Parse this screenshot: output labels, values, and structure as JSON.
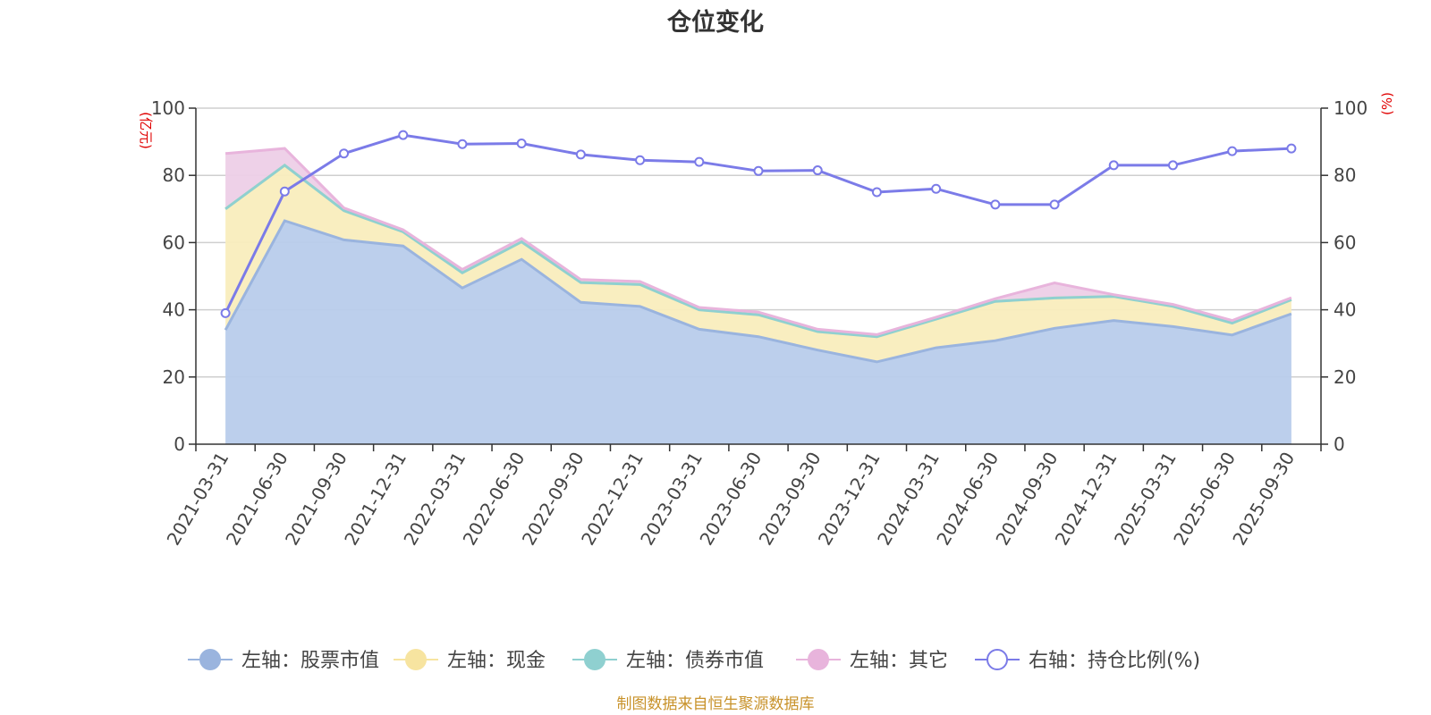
{
  "chart_data": {
    "type": "area",
    "title": "仓位变化",
    "categories": [
      "2021-03-31",
      "2021-06-30",
      "2021-09-30",
      "2021-12-31",
      "2022-03-31",
      "2022-06-30",
      "2022-09-30",
      "2022-12-31",
      "2023-03-31",
      "2023-06-30",
      "2023-09-30",
      "2023-12-31",
      "2024-03-31",
      "2024-06-30",
      "2024-09-30",
      "2024-12-31",
      "2025-03-31",
      "2025-06-30",
      "2025-09-30"
    ],
    "left_axis": {
      "unit": "(亿元)",
      "ylim": [
        0,
        100
      ],
      "ticks": [
        0,
        20,
        40,
        60,
        80,
        100
      ]
    },
    "right_axis": {
      "unit": "(%)",
      "ylim": [
        0,
        100
      ],
      "ticks": [
        0,
        20,
        40,
        60,
        80,
        100
      ]
    },
    "stacked_series": [
      {
        "key": "stock",
        "name": "左轴：股票市值",
        "color": "#9ab4de",
        "fill": "#b8cceb",
        "values": [
          34,
          66.5,
          60.8,
          59,
          46.5,
          55,
          42.2,
          41,
          34.2,
          32,
          28,
          24.5,
          28.7,
          30.8,
          34.5,
          36.8,
          35,
          32.5,
          38.8
        ]
      },
      {
        "key": "cash",
        "name": "左轴：现金",
        "color": "#f7e4a0",
        "fill": "#f9edbd",
        "values": [
          36,
          16.5,
          8.7,
          4.2,
          4.5,
          5.2,
          5.9,
          6.5,
          5.8,
          6.5,
          5.5,
          7.5,
          8.5,
          11.7,
          9,
          7.2,
          6,
          3.5,
          4.2
        ]
      },
      {
        "key": "bond",
        "name": "左轴：债券市值",
        "color": "#8fd0d0",
        "fill": "#b7e2e2",
        "values": [
          0,
          0,
          0,
          0,
          0,
          0,
          0,
          0,
          0,
          0,
          0,
          0,
          0,
          0,
          0,
          0,
          0,
          0,
          0
        ]
      },
      {
        "key": "other",
        "name": "左轴：其它",
        "color": "#e8b4dc",
        "fill": "#edcfe7",
        "values": [
          16.5,
          5,
          0.8,
          0.6,
          1,
          1,
          0.9,
          0.9,
          0.7,
          0.8,
          0.7,
          0.6,
          0.6,
          0.8,
          4.5,
          0.5,
          0.6,
          0.8,
          0.6
        ]
      }
    ],
    "line_series": {
      "key": "ratio",
      "name": "右轴：持仓比例(%)",
      "color": "#7b7be8",
      "values": [
        39,
        75.2,
        86.5,
        92,
        89.3,
        89.5,
        86.2,
        84.5,
        84,
        81.3,
        81.5,
        75,
        76,
        71.3,
        71.3,
        83,
        83,
        87.2,
        88
      ]
    },
    "legend_position": "bottom",
    "grid": true
  },
  "footer": {
    "source": "制图数据来自恒生聚源数据库"
  }
}
